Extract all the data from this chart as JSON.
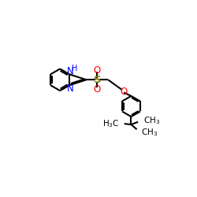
{
  "bg_color": "#ffffff",
  "bond_color": "#000000",
  "N_color": "#0000ff",
  "O_color": "#ff0000",
  "S_color": "#808000",
  "line_width": 1.5,
  "font_size": 8.5,
  "fig_bg": "#ffffff",
  "xlim": [
    0,
    10
  ],
  "ylim": [
    0,
    10
  ]
}
